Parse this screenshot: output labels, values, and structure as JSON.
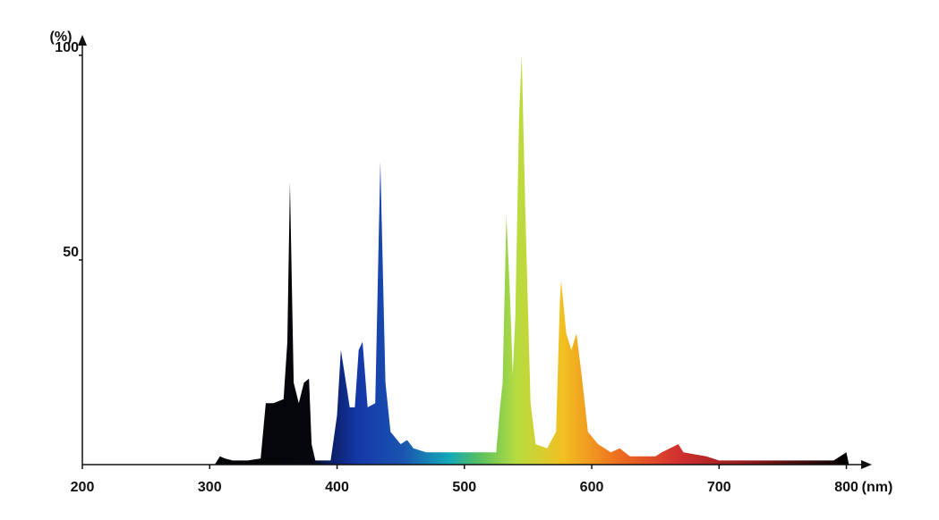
{
  "chart_data": {
    "type": "area",
    "x_label": "(nm)",
    "y_label": "(%)",
    "x": [
      304,
      308,
      312,
      318,
      330,
      340,
      344,
      350,
      358,
      361,
      363,
      366,
      370,
      374,
      378,
      380,
      383,
      395,
      400,
      403,
      406,
      410,
      414,
      417,
      420,
      424,
      430,
      434,
      438,
      442,
      450,
      455,
      460,
      470,
      500,
      525,
      528,
      530,
      533,
      536,
      538,
      540,
      543,
      545,
      548,
      552,
      556,
      565,
      572,
      575,
      576,
      580,
      584,
      588,
      592,
      597,
      605,
      615,
      622,
      630,
      650,
      655,
      668,
      672,
      690,
      700,
      750,
      790,
      800,
      802
    ],
    "values": [
      0,
      2,
      1.5,
      1,
      1,
      1.5,
      15,
      15,
      16,
      30,
      69,
      20,
      15,
      20,
      21,
      5,
      1,
      1,
      12,
      28,
      22,
      14,
      14,
      28,
      30,
      14,
      15,
      74,
      20,
      8,
      5,
      6,
      4,
      3,
      3,
      3,
      14,
      20,
      61,
      40,
      22,
      36,
      85,
      100,
      60,
      15,
      5,
      4,
      8,
      40,
      45,
      32,
      28,
      32,
      22,
      8,
      5,
      3,
      4,
      2,
      2,
      3,
      5,
      3,
      2,
      1,
      1,
      1,
      3,
      0
    ],
    "xlim": [
      200,
      820
    ],
    "ylim": [
      0,
      105
    ],
    "xticks": [
      200,
      300,
      400,
      500,
      600,
      700,
      800
    ],
    "yticks": [
      50,
      100
    ]
  }
}
